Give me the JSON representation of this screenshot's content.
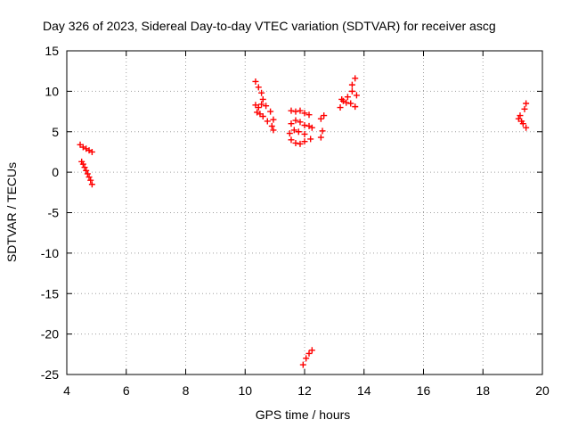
{
  "chart_data": {
    "type": "scatter",
    "title": "Day 326 of 2023, Sidereal Day-to-day VTEC variation (SDTVAR) for receiver ascg",
    "xlabel": "GPS time / hours",
    "ylabel": "SDTVAR / TECUs",
    "xlim": [
      4,
      20
    ],
    "ylim": [
      -25,
      15
    ],
    "xticks": [
      4,
      6,
      8,
      10,
      12,
      14,
      16,
      18,
      20
    ],
    "yticks": [
      -25,
      -20,
      -15,
      -10,
      -5,
      0,
      5,
      10,
      15
    ],
    "grid": true,
    "legend": "none",
    "marker": "plus",
    "color": "#ff0000",
    "points": [
      [
        4.45,
        3.4
      ],
      [
        4.55,
        3.1
      ],
      [
        4.65,
        2.9
      ],
      [
        4.75,
        2.7
      ],
      [
        4.85,
        2.5
      ],
      [
        4.5,
        1.3
      ],
      [
        4.55,
        1.0
      ],
      [
        4.6,
        0.6
      ],
      [
        4.65,
        0.2
      ],
      [
        4.7,
        -0.2
      ],
      [
        4.75,
        -0.6
      ],
      [
        4.8,
        -1.0
      ],
      [
        4.85,
        -1.5
      ],
      [
        10.35,
        11.2
      ],
      [
        10.45,
        10.5
      ],
      [
        10.55,
        9.8
      ],
      [
        10.6,
        9.0
      ],
      [
        10.35,
        8.3
      ],
      [
        10.45,
        8.0
      ],
      [
        10.55,
        8.4
      ],
      [
        10.7,
        8.2
      ],
      [
        10.85,
        7.5
      ],
      [
        10.95,
        6.5
      ],
      [
        10.4,
        7.4
      ],
      [
        10.5,
        7.2
      ],
      [
        10.6,
        6.9
      ],
      [
        10.75,
        6.3
      ],
      [
        10.9,
        5.7
      ],
      [
        10.95,
        5.2
      ],
      [
        11.55,
        7.6
      ],
      [
        11.7,
        7.5
      ],
      [
        11.85,
        7.6
      ],
      [
        12.0,
        7.3
      ],
      [
        12.15,
        7.1
      ],
      [
        11.55,
        6.0
      ],
      [
        11.7,
        6.4
      ],
      [
        11.85,
        6.2
      ],
      [
        12.0,
        5.8
      ],
      [
        12.15,
        5.7
      ],
      [
        12.25,
        5.5
      ],
      [
        11.5,
        4.8
      ],
      [
        11.65,
        5.2
      ],
      [
        11.8,
        5.0
      ],
      [
        12.0,
        4.7
      ],
      [
        11.55,
        4.0
      ],
      [
        11.7,
        3.6
      ],
      [
        11.85,
        3.5
      ],
      [
        12.0,
        3.8
      ],
      [
        12.2,
        4.1
      ],
      [
        12.55,
        6.6
      ],
      [
        12.65,
        7.0
      ],
      [
        12.55,
        4.3
      ],
      [
        12.6,
        5.1
      ],
      [
        13.2,
        8.0
      ],
      [
        13.3,
        8.8
      ],
      [
        13.45,
        9.3
      ],
      [
        13.6,
        10.0
      ],
      [
        13.7,
        11.6
      ],
      [
        13.25,
        9.0
      ],
      [
        13.4,
        8.6
      ],
      [
        13.55,
        8.5
      ],
      [
        13.7,
        8.1
      ],
      [
        13.6,
        10.8
      ],
      [
        13.75,
        9.5
      ],
      [
        11.95,
        -23.8
      ],
      [
        12.05,
        -23.0
      ],
      [
        12.15,
        -22.4
      ],
      [
        12.25,
        -22.0
      ],
      [
        19.25,
        7.0
      ],
      [
        19.3,
        6.3
      ],
      [
        19.35,
        6.0
      ],
      [
        19.45,
        5.5
      ],
      [
        19.4,
        7.8
      ],
      [
        19.45,
        8.5
      ],
      [
        19.2,
        6.6
      ]
    ]
  }
}
